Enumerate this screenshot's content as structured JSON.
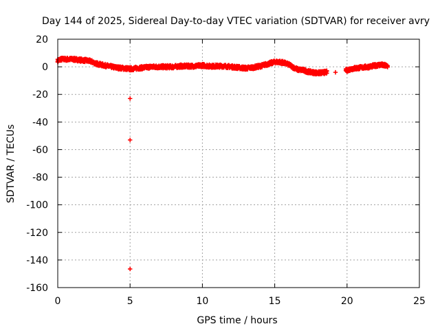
{
  "chart_data": {
    "type": "scatter",
    "title": "Day 144 of 2025, Sidereal Day-to-day VTEC variation (SDTVAR) for receiver avry",
    "xlabel": "GPS time / hours",
    "ylabel": "SDTVAR / TECUs",
    "xlim": [
      0,
      25
    ],
    "ylim": [
      -160,
      20
    ],
    "xticks": [
      0,
      5,
      10,
      15,
      20,
      25
    ],
    "yticks": [
      20,
      0,
      -20,
      -40,
      -60,
      -80,
      -100,
      -120,
      -140,
      -160
    ],
    "grid": true,
    "series_color": "#ff0000",
    "marker": "plus",
    "trend": [
      [
        0.0,
        4.5
      ],
      [
        0.2,
        5.5
      ],
      [
        0.5,
        5.5
      ],
      [
        1.0,
        5.5
      ],
      [
        1.5,
        5.0
      ],
      [
        2.0,
        4.5
      ],
      [
        2.3,
        4.0
      ],
      [
        2.6,
        2.5
      ],
      [
        3.0,
        1.5
      ],
      [
        3.5,
        0.5
      ],
      [
        4.0,
        -0.5
      ],
      [
        4.5,
        -1.0
      ],
      [
        5.0,
        -1.5
      ],
      [
        5.5,
        -1.0
      ],
      [
        6.0,
        -0.5
      ],
      [
        6.5,
        0.0
      ],
      [
        7.0,
        0.0
      ],
      [
        7.5,
        0.0
      ],
      [
        8.0,
        0.0
      ],
      [
        8.5,
        0.5
      ],
      [
        9.0,
        0.5
      ],
      [
        9.5,
        0.5
      ],
      [
        10.0,
        1.0
      ],
      [
        10.5,
        0.5
      ],
      [
        11.0,
        0.5
      ],
      [
        11.5,
        0.5
      ],
      [
        12.0,
        0.0
      ],
      [
        12.5,
        -0.5
      ],
      [
        13.0,
        -1.0
      ],
      [
        13.5,
        -0.5
      ],
      [
        14.0,
        0.5
      ],
      [
        14.5,
        2.0
      ],
      [
        15.0,
        3.5
      ],
      [
        15.3,
        3.5
      ],
      [
        15.6,
        3.0
      ],
      [
        16.0,
        1.5
      ],
      [
        16.3,
        -0.5
      ],
      [
        16.6,
        -2.0
      ],
      [
        17.0,
        -2.5
      ],
      [
        17.3,
        -3.5
      ],
      [
        17.6,
        -4.0
      ],
      [
        18.0,
        -4.5
      ],
      [
        18.5,
        -4.0
      ],
      [
        20.0,
        -2.5
      ],
      [
        20.3,
        -1.5
      ],
      [
        20.6,
        -1.0
      ],
      [
        21.0,
        -0.5
      ],
      [
        21.5,
        0.0
      ],
      [
        22.0,
        1.0
      ],
      [
        22.3,
        1.5
      ],
      [
        22.6,
        1.0
      ],
      [
        22.8,
        0.5
      ]
    ],
    "gaps": [
      [
        18.6,
        19.9
      ]
    ],
    "isolated_points": [
      [
        19.2,
        -4.0
      ],
      [
        5.0,
        -23.0
      ],
      [
        5.0,
        -53.0
      ],
      [
        5.0,
        -146.5
      ]
    ]
  }
}
